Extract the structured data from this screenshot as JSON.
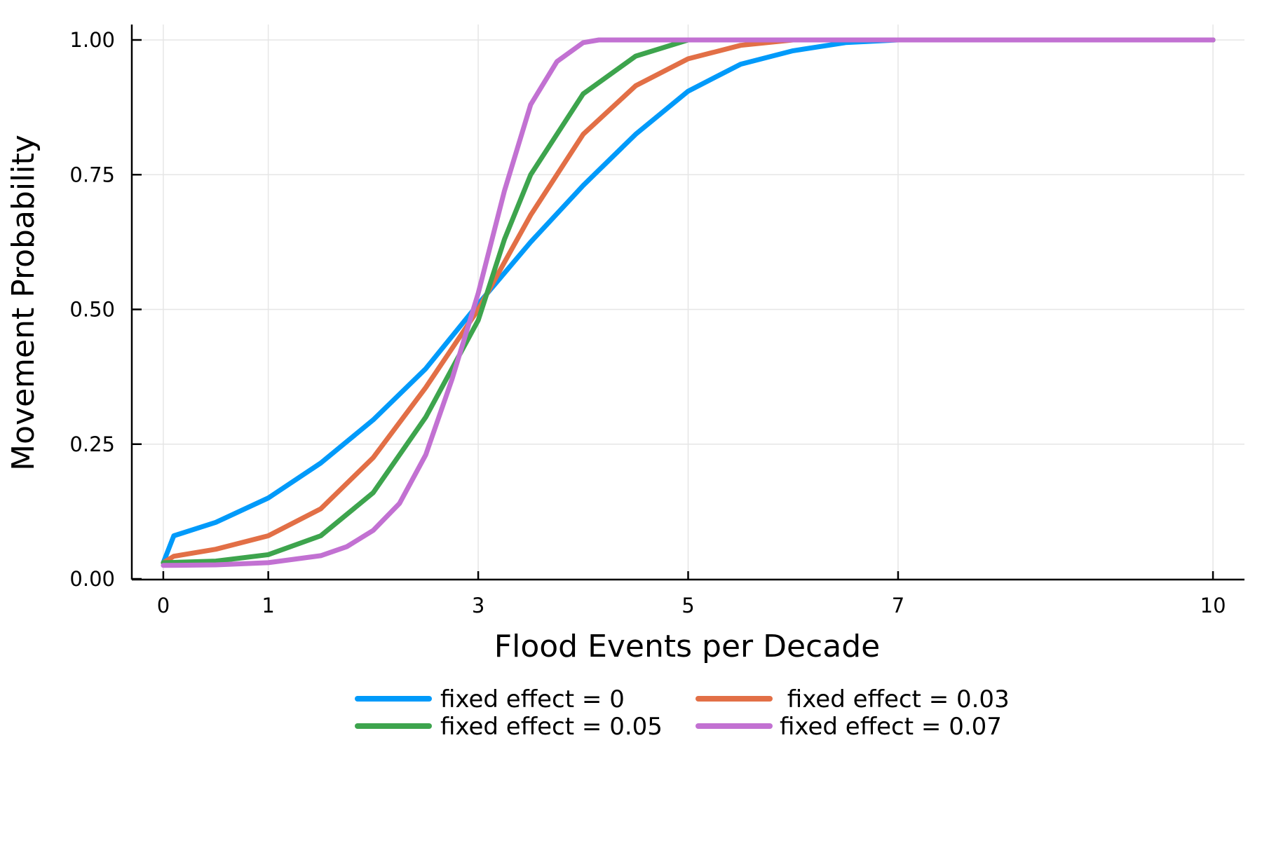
{
  "chart_data": {
    "type": "line",
    "title": "",
    "xlabel": "Flood Events per Decade",
    "ylabel": "Movement Probability",
    "xlim": [
      -0.3,
      10.3
    ],
    "ylim": [
      0,
      1.0
    ],
    "x_ticks": [
      0,
      1,
      3,
      5,
      7,
      10
    ],
    "x_tick_labels": [
      "0",
      "1",
      "3",
      "5",
      "7",
      "10"
    ],
    "y_ticks": [
      0,
      0.25,
      0.5,
      0.75,
      1.0
    ],
    "y_tick_labels": [
      "0.00",
      "0.25",
      "0.50",
      "0.75",
      "1.00"
    ],
    "grid": true,
    "legend_position": "bottom-outside",
    "series": [
      {
        "name": "fixed effect = 0",
        "color": "#009AFA",
        "x": [
          0,
          0.1,
          0.5,
          1.0,
          1.5,
          2.0,
          2.5,
          3.0,
          3.5,
          4.0,
          4.5,
          5.0,
          5.5,
          6.0,
          6.5,
          7.0,
          8.0,
          9.0,
          10.0
        ],
        "y": [
          0.03,
          0.08,
          0.105,
          0.15,
          0.215,
          0.295,
          0.39,
          0.51,
          0.625,
          0.73,
          0.825,
          0.905,
          0.955,
          0.98,
          0.995,
          1.0,
          1.0,
          1.0,
          1.0
        ]
      },
      {
        "name": " fixed effect = 0.03",
        "color": "#E26F46",
        "x": [
          0,
          0.1,
          0.5,
          1.0,
          1.5,
          2.0,
          2.5,
          3.0,
          3.5,
          4.0,
          4.5,
          5.0,
          5.5,
          6.0,
          7.0,
          8.0,
          9.0,
          10.0
        ],
        "y": [
          0.03,
          0.042,
          0.055,
          0.08,
          0.13,
          0.225,
          0.355,
          0.5,
          0.675,
          0.825,
          0.915,
          0.965,
          0.99,
          1.0,
          1.0,
          1.0,
          1.0,
          1.0
        ]
      },
      {
        "name": "fixed effect = 0.05",
        "color": "#3DA44D",
        "x": [
          0,
          0.5,
          1.0,
          1.5,
          2.0,
          2.5,
          3.0,
          3.25,
          3.5,
          4.0,
          4.5,
          5.0,
          6.0,
          7.0,
          8.0,
          9.0,
          10.0
        ],
        "y": [
          0.03,
          0.033,
          0.045,
          0.08,
          0.16,
          0.3,
          0.48,
          0.63,
          0.75,
          0.9,
          0.97,
          1.0,
          1.0,
          1.0,
          1.0,
          1.0,
          1.0
        ]
      },
      {
        "name": "fixed effect = 0.07",
        "color": "#C271D2",
        "x": [
          0,
          0.5,
          1.0,
          1.5,
          1.75,
          2.0,
          2.25,
          2.5,
          2.75,
          3.0,
          3.25,
          3.5,
          3.75,
          4.0,
          4.15,
          5.0,
          6.0,
          7.0,
          8.0,
          9.0,
          10.0
        ],
        "y": [
          0.025,
          0.026,
          0.03,
          0.043,
          0.06,
          0.09,
          0.14,
          0.23,
          0.37,
          0.53,
          0.72,
          0.88,
          0.96,
          0.995,
          1.0,
          1.0,
          1.0,
          1.0,
          1.0,
          1.0,
          1.0
        ]
      }
    ]
  }
}
